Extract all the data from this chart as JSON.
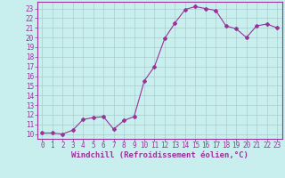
{
  "x": [
    0,
    1,
    2,
    3,
    4,
    5,
    6,
    7,
    8,
    9,
    10,
    11,
    12,
    13,
    14,
    15,
    16,
    17,
    18,
    19,
    20,
    21,
    22,
    23
  ],
  "y": [
    10.1,
    10.1,
    10.0,
    10.4,
    11.5,
    11.7,
    11.8,
    10.5,
    11.4,
    11.8,
    15.5,
    17.0,
    19.9,
    21.5,
    22.9,
    23.2,
    23.0,
    22.8,
    21.2,
    20.9,
    20.0,
    21.2,
    21.4,
    21.0
  ],
  "line_color": "#993399",
  "marker": "D",
  "marker_size": 2.0,
  "bg_color": "#c8eeee",
  "grid_color": "#aacccc",
  "xlabel": "Windchill (Refroidissement éolien,°C)",
  "xlabel_color": "#993399",
  "tick_color": "#993399",
  "ylim": [
    9.5,
    23.7
  ],
  "xlim": [
    -0.5,
    23.5
  ],
  "yticks": [
    10,
    11,
    12,
    13,
    14,
    15,
    16,
    17,
    18,
    19,
    20,
    21,
    22,
    23
  ],
  "xticks": [
    0,
    1,
    2,
    3,
    4,
    5,
    6,
    7,
    8,
    9,
    10,
    11,
    12,
    13,
    14,
    15,
    16,
    17,
    18,
    19,
    20,
    21,
    22,
    23
  ],
  "font_size": 5.5,
  "xlabel_font_size": 6.5
}
